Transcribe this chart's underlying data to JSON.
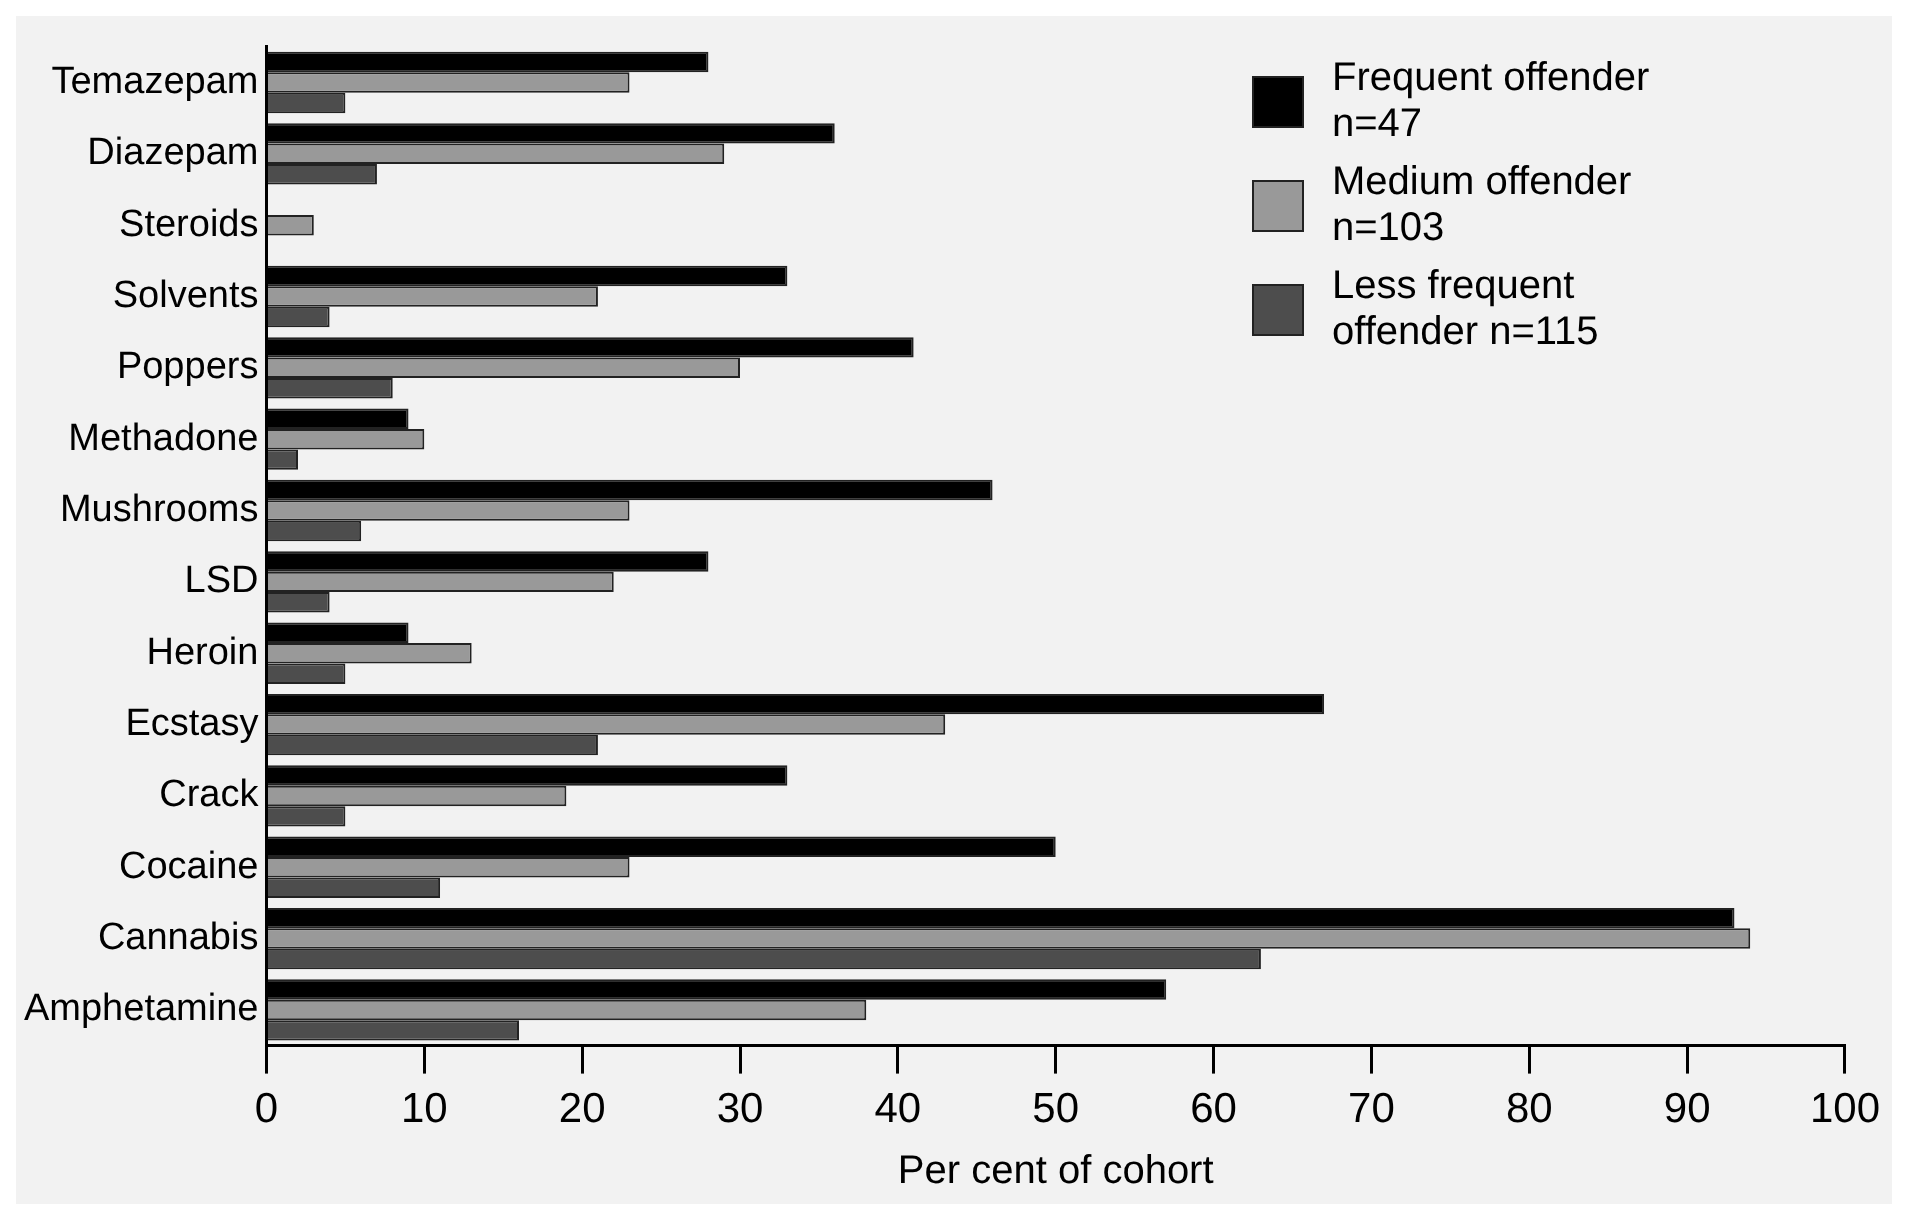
{
  "chart_data": {
    "type": "bar",
    "orientation": "horizontal",
    "xlabel": "Per cent of cohort",
    "categories": [
      "Temazepam",
      "Diazepam",
      "Steroids",
      "Solvents",
      "Poppers",
      "Methadone",
      "Mushrooms",
      "LSD",
      "Heroin",
      "Ecstasy",
      "Crack",
      "Cocaine",
      "Cannabis",
      "Amphetamine"
    ],
    "series": [
      {
        "name": "Frequent offender n=47",
        "color": "#000000",
        "values": [
          28,
          36,
          0,
          33,
          41,
          9,
          46,
          28,
          9,
          67,
          33,
          50,
          93,
          57
        ]
      },
      {
        "name": "Medium offender n=103",
        "color": "#999999",
        "values": [
          23,
          29,
          3,
          21,
          30,
          10,
          23,
          22,
          13,
          43,
          19,
          23,
          94,
          38
        ]
      },
      {
        "name": "Less frequent offender n=115",
        "color": "#4d4d4d",
        "values": [
          5,
          7,
          0,
          4,
          8,
          2,
          6,
          4,
          5,
          21,
          5,
          11,
          63,
          16
        ]
      }
    ],
    "xlim": [
      0,
      100
    ],
    "xticks": [
      0,
      10,
      20,
      30,
      40,
      50,
      60,
      70,
      80,
      90,
      100
    ],
    "grid": false,
    "legend": "top right"
  }
}
